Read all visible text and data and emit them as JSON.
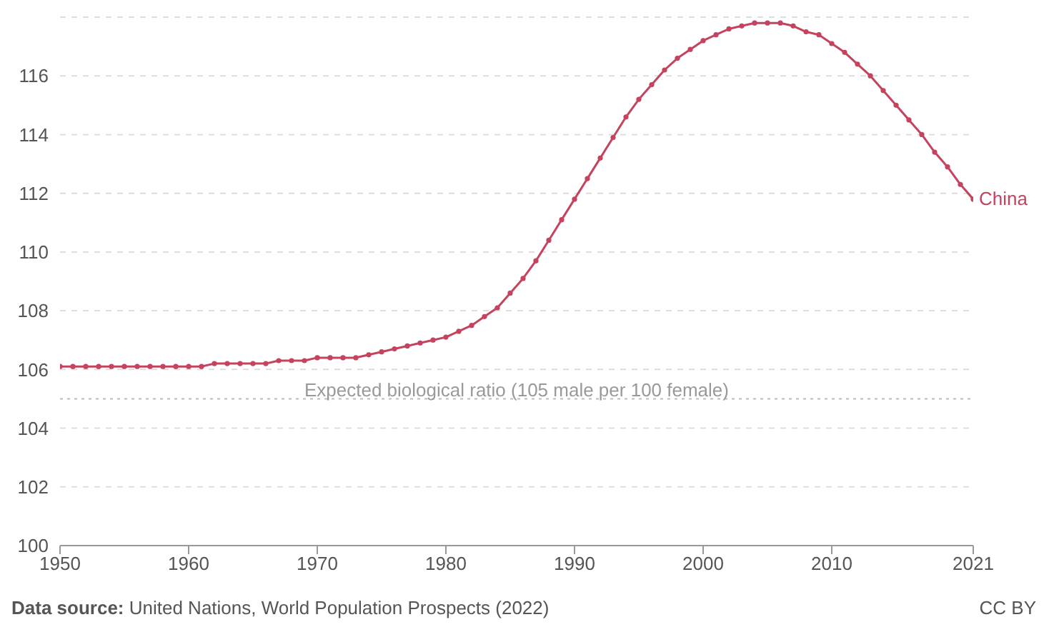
{
  "chart_data": {
    "type": "line",
    "x": [
      1950,
      1951,
      1952,
      1953,
      1954,
      1955,
      1956,
      1957,
      1958,
      1959,
      1960,
      1961,
      1962,
      1963,
      1964,
      1965,
      1966,
      1967,
      1968,
      1969,
      1970,
      1971,
      1972,
      1973,
      1974,
      1975,
      1976,
      1977,
      1978,
      1979,
      1980,
      1981,
      1982,
      1983,
      1984,
      1985,
      1986,
      1987,
      1988,
      1989,
      1990,
      1991,
      1992,
      1993,
      1994,
      1995,
      1996,
      1997,
      1998,
      1999,
      2000,
      2001,
      2002,
      2003,
      2004,
      2005,
      2006,
      2007,
      2008,
      2009,
      2010,
      2011,
      2012,
      2013,
      2014,
      2015,
      2016,
      2017,
      2018,
      2019,
      2020,
      2021
    ],
    "series": [
      {
        "name": "China",
        "color": "#c4435e",
        "values": [
          106.1,
          106.1,
          106.1,
          106.1,
          106.1,
          106.1,
          106.1,
          106.1,
          106.1,
          106.1,
          106.1,
          106.1,
          106.2,
          106.2,
          106.2,
          106.2,
          106.2,
          106.3,
          106.3,
          106.3,
          106.4,
          106.4,
          106.4,
          106.4,
          106.5,
          106.6,
          106.7,
          106.8,
          106.9,
          107.0,
          107.1,
          107.3,
          107.5,
          107.8,
          108.1,
          108.6,
          109.1,
          109.7,
          110.4,
          111.1,
          111.8,
          112.5,
          113.2,
          113.9,
          114.6,
          115.2,
          115.7,
          116.2,
          116.6,
          116.9,
          117.2,
          117.4,
          117.6,
          117.7,
          117.8,
          117.8,
          117.8,
          117.7,
          117.5,
          117.4,
          117.1,
          116.8,
          116.4,
          116.0,
          115.5,
          115.0,
          114.5,
          114.0,
          113.4,
          112.9,
          112.3,
          111.8
        ]
      }
    ],
    "xlim": [
      1950,
      2021
    ],
    "xticks": [
      1950,
      1960,
      1970,
      1980,
      1990,
      2000,
      2010,
      2021
    ],
    "ylim": [
      100,
      118
    ],
    "yticks": [
      100,
      102,
      104,
      106,
      108,
      110,
      112,
      114,
      116
    ],
    "grid": "y",
    "marker": "circle",
    "line_style": "solid",
    "ref_lines": [
      {
        "axis": "y",
        "value": 105,
        "label": "Expected biological ratio (105 male per 100 female)",
        "color": "#bbbbbb",
        "line_style": "dotted"
      }
    ],
    "annotations": [
      "Data source: United Nations, World Population Prospects (2022)",
      "CC BY"
    ]
  }
}
